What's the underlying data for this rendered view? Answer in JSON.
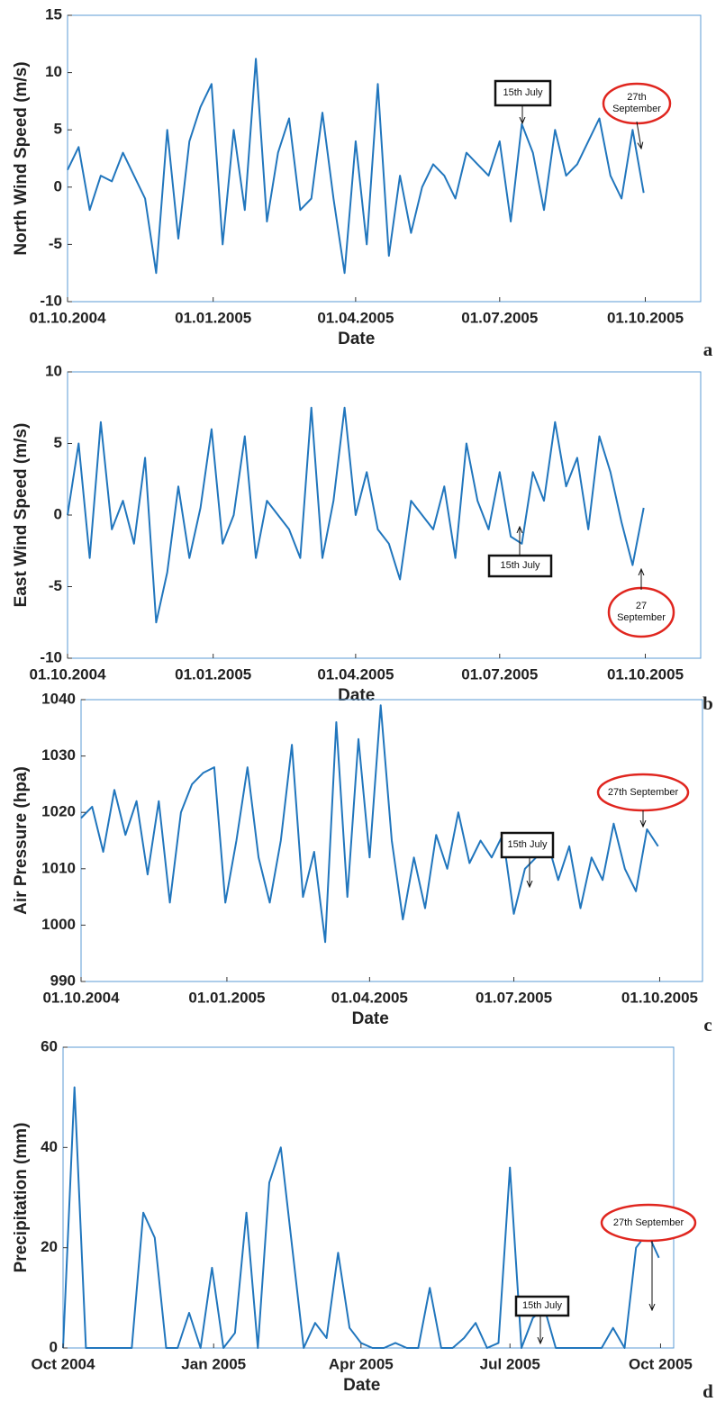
{
  "chart_data": [
    {
      "type": "line",
      "x_label": "Date",
      "y_label": "North Wind Speed (m/s)",
      "panel_label": "a",
      "color": "#2176bd",
      "x": [
        "2004-10-01",
        "2004-10-08",
        "2004-10-15",
        "2004-10-22",
        "2004-10-29",
        "2004-11-05",
        "2004-11-12",
        "2004-11-19",
        "2004-11-26",
        "2004-12-03",
        "2004-12-10",
        "2004-12-17",
        "2004-12-24",
        "2004-12-31",
        "2005-01-07",
        "2005-01-14",
        "2005-01-21",
        "2005-01-28",
        "2005-02-04",
        "2005-02-11",
        "2005-02-18",
        "2005-02-25",
        "2005-03-04",
        "2005-03-11",
        "2005-03-18",
        "2005-03-25",
        "2005-04-01",
        "2005-04-08",
        "2005-04-15",
        "2005-04-22",
        "2005-04-29",
        "2005-05-06",
        "2005-05-13",
        "2005-05-20",
        "2005-05-27",
        "2005-06-03",
        "2005-06-10",
        "2005-06-17",
        "2005-06-24",
        "2005-07-01",
        "2005-07-08",
        "2005-07-15",
        "2005-07-22",
        "2005-07-29",
        "2005-08-05",
        "2005-08-12",
        "2005-08-19",
        "2005-08-26",
        "2005-09-02",
        "2005-09-09",
        "2005-09-16",
        "2005-09-23",
        "2005-09-30"
      ],
      "values": [
        1.5,
        3.5,
        -2,
        1,
        0.5,
        3,
        1,
        -1,
        -7.5,
        5,
        -4.5,
        4,
        7,
        9,
        -5,
        5,
        -2,
        11.2,
        -3,
        3,
        6,
        -2,
        -1,
        6.5,
        -1,
        -7.5,
        4,
        -5,
        9,
        -6,
        1,
        -4,
        0,
        2,
        1,
        -1,
        3,
        2,
        1,
        4,
        -3,
        5.5,
        3,
        -2,
        5,
        1,
        2,
        4,
        6,
        1,
        -1,
        5,
        -0.5
      ],
      "xlim": [
        "2004-10-01",
        "2005-11-05"
      ],
      "ylim": [
        -10,
        15
      ],
      "xticks": [
        {
          "value": "2004-10-01",
          "label": "01.10.2004"
        },
        {
          "value": "2005-01-01",
          "label": "01.01.2005"
        },
        {
          "value": "2005-04-01",
          "label": "01.04.2005"
        },
        {
          "value": "2005-07-01",
          "label": "01.07.2005"
        },
        {
          "value": "2005-10-01",
          "label": "01.10.2005"
        }
      ],
      "yticks": [
        -10,
        -5,
        0,
        5,
        10,
        15
      ],
      "annotations": [
        "15th July",
        "27th September"
      ]
    },
    {
      "type": "line",
      "x_label": "Date",
      "y_label": "East Wind Speed (m/s)",
      "panel_label": "b",
      "color": "#2176bd",
      "x": [
        "2004-10-01",
        "2004-10-08",
        "2004-10-15",
        "2004-10-22",
        "2004-10-29",
        "2004-11-05",
        "2004-11-12",
        "2004-11-19",
        "2004-11-26",
        "2004-12-03",
        "2004-12-10",
        "2004-12-17",
        "2004-12-24",
        "2004-12-31",
        "2005-01-07",
        "2005-01-14",
        "2005-01-21",
        "2005-01-28",
        "2005-02-04",
        "2005-02-11",
        "2005-02-18",
        "2005-02-25",
        "2005-03-04",
        "2005-03-11",
        "2005-03-18",
        "2005-03-25",
        "2005-04-01",
        "2005-04-08",
        "2005-04-15",
        "2005-04-22",
        "2005-04-29",
        "2005-05-06",
        "2005-05-13",
        "2005-05-20",
        "2005-05-27",
        "2005-06-03",
        "2005-06-10",
        "2005-06-17",
        "2005-06-24",
        "2005-07-01",
        "2005-07-08",
        "2005-07-15",
        "2005-07-22",
        "2005-07-29",
        "2005-08-05",
        "2005-08-12",
        "2005-08-19",
        "2005-08-26",
        "2005-09-02",
        "2005-09-09",
        "2005-09-16",
        "2005-09-23",
        "2005-09-30"
      ],
      "values": [
        0,
        5,
        -3,
        6.5,
        -1,
        1,
        -2,
        4,
        -7.5,
        -4,
        2,
        -3,
        0.5,
        6,
        -2,
        0,
        5.5,
        -3,
        1,
        0,
        -1,
        -3,
        7.5,
        -3,
        1,
        7.5,
        0,
        3,
        -1,
        -2,
        -4.5,
        1,
        0,
        -1,
        2,
        -3,
        5,
        1,
        -1,
        3,
        -1.5,
        -2,
        3,
        1,
        6.5,
        2,
        4,
        -1,
        5.5,
        3,
        -0.5,
        -3.5,
        0.5
      ],
      "xlim": [
        "2004-10-01",
        "2005-11-05"
      ],
      "ylim": [
        -10,
        10
      ],
      "xticks": [
        {
          "value": "2004-10-01",
          "label": "01.10.2004"
        },
        {
          "value": "2005-01-01",
          "label": "01.01.2005"
        },
        {
          "value": "2005-04-01",
          "label": "01.04.2005"
        },
        {
          "value": "2005-07-01",
          "label": "01.07.2005"
        },
        {
          "value": "2005-10-01",
          "label": "01.10.2005"
        }
      ],
      "yticks": [
        -10,
        -5,
        0,
        5,
        10
      ],
      "annotations": [
        "15th July",
        "27 September"
      ]
    },
    {
      "type": "line",
      "x_label": "Date",
      "y_label": "Air Pressure (hpa)",
      "panel_label": "c",
      "color": "#2176bd",
      "x": [
        "2004-10-01",
        "2004-10-08",
        "2004-10-15",
        "2004-10-22",
        "2004-10-29",
        "2004-11-05",
        "2004-11-12",
        "2004-11-19",
        "2004-11-26",
        "2004-12-03",
        "2004-12-10",
        "2004-12-17",
        "2004-12-24",
        "2004-12-31",
        "2005-01-07",
        "2005-01-14",
        "2005-01-21",
        "2005-01-28",
        "2005-02-04",
        "2005-02-11",
        "2005-02-18",
        "2005-02-25",
        "2005-03-04",
        "2005-03-11",
        "2005-03-18",
        "2005-03-25",
        "2005-04-01",
        "2005-04-08",
        "2005-04-15",
        "2005-04-22",
        "2005-04-29",
        "2005-05-06",
        "2005-05-13",
        "2005-05-20",
        "2005-05-27",
        "2005-06-03",
        "2005-06-10",
        "2005-06-17",
        "2005-06-24",
        "2005-07-01",
        "2005-07-08",
        "2005-07-15",
        "2005-07-22",
        "2005-07-29",
        "2005-08-05",
        "2005-08-12",
        "2005-08-19",
        "2005-08-26",
        "2005-09-02",
        "2005-09-09",
        "2005-09-16",
        "2005-09-23",
        "2005-09-30"
      ],
      "values": [
        1019,
        1021,
        1013,
        1024,
        1016,
        1022,
        1009,
        1022,
        1004,
        1020,
        1025,
        1027,
        1028,
        1004,
        1015,
        1028,
        1012,
        1004,
        1015,
        1032,
        1005,
        1013,
        997,
        1036,
        1005,
        1033,
        1012,
        1039,
        1015,
        1001,
        1012,
        1003,
        1016,
        1010,
        1020,
        1011,
        1015,
        1012,
        1016,
        1002,
        1010,
        1012,
        1015,
        1008,
        1014,
        1003,
        1012,
        1008,
        1018,
        1010,
        1006,
        1017,
        1014
      ],
      "xlim": [
        "2004-10-01",
        "2005-10-28"
      ],
      "ylim": [
        990,
        1040
      ],
      "xticks": [
        {
          "value": "2004-10-01",
          "label": "01.10.2004"
        },
        {
          "value": "2005-01-01",
          "label": "01.01.2005"
        },
        {
          "value": "2005-04-01",
          "label": "01.04.2005"
        },
        {
          "value": "2005-07-01",
          "label": "01.07.2005"
        },
        {
          "value": "2005-10-01",
          "label": "01.10.2005"
        }
      ],
      "yticks": [
        990,
        1000,
        1010,
        1020,
        1030,
        1040
      ],
      "annotations": [
        "15th July",
        "27th September"
      ]
    },
    {
      "type": "line",
      "x_label": "Date",
      "y_label": "Precipitation (mm)",
      "panel_label": "d",
      "color": "#2176bd",
      "x": [
        "2004-10-01",
        "2004-10-08",
        "2004-10-15",
        "2004-10-22",
        "2004-10-29",
        "2004-11-05",
        "2004-11-12",
        "2004-11-19",
        "2004-11-26",
        "2004-12-03",
        "2004-12-10",
        "2004-12-17",
        "2004-12-24",
        "2004-12-31",
        "2005-01-07",
        "2005-01-14",
        "2005-01-21",
        "2005-01-28",
        "2005-02-04",
        "2005-02-11",
        "2005-02-18",
        "2005-02-25",
        "2005-03-04",
        "2005-03-11",
        "2005-03-18",
        "2005-03-25",
        "2005-04-01",
        "2005-04-08",
        "2005-04-15",
        "2005-04-22",
        "2005-04-29",
        "2005-05-06",
        "2005-05-13",
        "2005-05-20",
        "2005-05-27",
        "2005-06-03",
        "2005-06-10",
        "2005-06-17",
        "2005-06-24",
        "2005-07-01",
        "2005-07-08",
        "2005-07-15",
        "2005-07-22",
        "2005-07-29",
        "2005-08-05",
        "2005-08-12",
        "2005-08-19",
        "2005-08-26",
        "2005-09-02",
        "2005-09-09",
        "2005-09-16",
        "2005-09-23",
        "2005-09-30"
      ],
      "values": [
        0,
        52,
        0,
        0,
        0,
        0,
        0,
        27,
        22,
        0,
        0,
        7,
        0,
        16,
        0,
        3,
        27,
        0,
        33,
        40,
        20,
        0,
        5,
        2,
        19,
        4,
        1,
        0,
        0,
        1,
        0,
        0,
        12,
        0,
        0,
        2,
        5,
        0,
        1,
        36,
        0,
        6,
        8,
        0,
        0,
        0,
        0,
        0,
        4,
        0,
        20,
        23,
        18
      ],
      "xlim": [
        "2004-10-01",
        "2005-10-09"
      ],
      "ylim": [
        0,
        60
      ],
      "xticks": [
        {
          "value": "2004-10-01",
          "label": "Oct 2004"
        },
        {
          "value": "2005-01-01",
          "label": "Jan 2005"
        },
        {
          "value": "2005-04-01",
          "label": "Apr 2005"
        },
        {
          "value": "2005-07-01",
          "label": "Jul 2005"
        },
        {
          "value": "2005-10-01",
          "label": "Oct 2005"
        }
      ],
      "yticks": [
        0,
        20,
        40,
        60
      ],
      "annotations": [
        "15th July",
        "27th September"
      ]
    }
  ]
}
